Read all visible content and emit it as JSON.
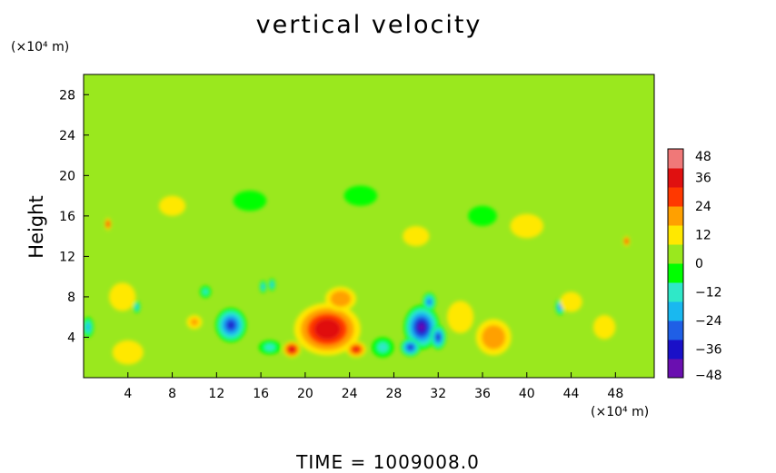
{
  "chart_data": {
    "type": "heatmap",
    "title": "vertical velocity",
    "ylabel": "Height",
    "x_unit": "(×10⁴ m)",
    "y_unit": "(×10⁴ m)",
    "footer": "TIME  =  1009008.0",
    "xlim": [
      0,
      51.5
    ],
    "ylim": [
      0,
      30
    ],
    "x_ticks": [
      4,
      8,
      12,
      16,
      20,
      24,
      28,
      32,
      36,
      40,
      44,
      48
    ],
    "y_ticks": [
      4,
      8,
      12,
      16,
      20,
      24,
      28
    ],
    "colorbar": {
      "ticks": [
        48,
        36,
        24,
        12,
        0,
        -12,
        -24,
        -36,
        -48
      ],
      "tick_labels": [
        "48",
        "36",
        "24",
        "12",
        "0",
        "−12",
        "−24",
        "−36",
        "−48"
      ],
      "range": [
        -48,
        48
      ],
      "colors": [
        "#6a0fb0",
        "#1a10c8",
        "#1f5fe6",
        "#19b8f0",
        "#2fe8c8",
        "#00ff00",
        "#9ae81e",
        "#ffe800",
        "#ffa000",
        "#ff3800",
        "#e01010",
        "#f07878"
      ]
    },
    "background_value": 0,
    "features": [
      {
        "x": 13.3,
        "y": 5.2,
        "value": -40,
        "sx": 1.4,
        "sy": 1.7
      },
      {
        "x": 30.5,
        "y": 5.0,
        "value": -42,
        "sx": 1.6,
        "sy": 2.2
      },
      {
        "x": 29.5,
        "y": 3.0,
        "value": -34,
        "sx": 0.9,
        "sy": 0.9
      },
      {
        "x": 32.0,
        "y": 4.0,
        "value": -36,
        "sx": 0.7,
        "sy": 1.2
      },
      {
        "x": 31.2,
        "y": 7.5,
        "value": -30,
        "sx": 0.6,
        "sy": 0.9
      },
      {
        "x": 4.8,
        "y": 7.0,
        "value": -24,
        "sx": 0.3,
        "sy": 0.6
      },
      {
        "x": 16.2,
        "y": 9.0,
        "value": -22,
        "sx": 0.3,
        "sy": 0.6
      },
      {
        "x": 17.0,
        "y": 9.2,
        "value": -20,
        "sx": 0.3,
        "sy": 0.6
      },
      {
        "x": 43.0,
        "y": 7.0,
        "value": -26,
        "sx": 0.4,
        "sy": 0.8
      },
      {
        "x": 0.4,
        "y": 5.0,
        "value": -18,
        "sx": 0.5,
        "sy": 1.0
      },
      {
        "x": 16.8,
        "y": 3.0,
        "value": -16,
        "sx": 1.0,
        "sy": 0.7
      },
      {
        "x": 22.0,
        "y": 4.8,
        "value": 38,
        "sx": 3.0,
        "sy": 2.6
      },
      {
        "x": 18.8,
        "y": 2.8,
        "value": 34,
        "sx": 0.8,
        "sy": 0.8
      },
      {
        "x": 24.6,
        "y": 2.8,
        "value": 32,
        "sx": 0.9,
        "sy": 0.8
      },
      {
        "x": 23.2,
        "y": 7.8,
        "value": 22,
        "sx": 1.4,
        "sy": 1.2
      },
      {
        "x": 2.2,
        "y": 15.2,
        "value": 28,
        "sx": 0.3,
        "sy": 0.6
      },
      {
        "x": 49.0,
        "y": 13.5,
        "value": 28,
        "sx": 0.3,
        "sy": 0.5
      },
      {
        "x": 3.5,
        "y": 8.0,
        "value": 14,
        "sx": 1.2,
        "sy": 1.4
      },
      {
        "x": 10.0,
        "y": 5.5,
        "value": 16,
        "sx": 0.7,
        "sy": 0.7
      },
      {
        "x": 37.0,
        "y": 4.0,
        "value": 18,
        "sx": 1.6,
        "sy": 1.8
      },
      {
        "x": 34.0,
        "y": 6.0,
        "value": 10,
        "sx": 1.2,
        "sy": 1.6
      },
      {
        "x": 44.0,
        "y": 7.5,
        "value": 12,
        "sx": 1.0,
        "sy": 1.0
      },
      {
        "x": 47.0,
        "y": 5.0,
        "value": 12,
        "sx": 1.0,
        "sy": 1.2
      },
      {
        "x": 4.0,
        "y": 2.5,
        "value": 10,
        "sx": 1.4,
        "sy": 1.2
      },
      {
        "x": 15.0,
        "y": 17.5,
        "value": -8,
        "sx": 1.5,
        "sy": 1.0
      },
      {
        "x": 8.0,
        "y": 17.0,
        "value": 10,
        "sx": 1.2,
        "sy": 1.0
      },
      {
        "x": 25.0,
        "y": 18.0,
        "value": -8,
        "sx": 1.5,
        "sy": 1.0
      },
      {
        "x": 40.0,
        "y": 15.0,
        "value": 8,
        "sx": 1.5,
        "sy": 1.2
      },
      {
        "x": 36.0,
        "y": 16.0,
        "value": -8,
        "sx": 1.3,
        "sy": 1.0
      },
      {
        "x": 30.0,
        "y": 14.0,
        "value": 8,
        "sx": 1.2,
        "sy": 1.0
      },
      {
        "x": 11.0,
        "y": 8.5,
        "value": -12,
        "sx": 0.5,
        "sy": 0.6
      },
      {
        "x": 27.0,
        "y": 3.0,
        "value": -10,
        "sx": 1.0,
        "sy": 1.0
      }
    ]
  }
}
